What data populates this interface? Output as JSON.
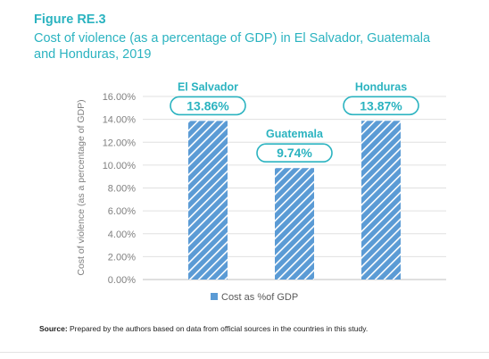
{
  "figure": {
    "label": "Figure RE.3",
    "title": "Cost of violence (as a percentage of GDP) in El Salvador, Guatemala and Honduras, 2019"
  },
  "source": {
    "prefix": "Source:",
    "text": " Prepared by the authors based on data from official sources in the countries in this study."
  },
  "colors": {
    "accent": "#2bb3c0",
    "bar": "#5b9bd5",
    "bar_stripe": "#ffffff",
    "axis_text": "#808080"
  },
  "chart_data": {
    "type": "bar",
    "title": "Cost of violence (as a percentage of GDP) in El Salvador, Guatemala and Honduras, 2019",
    "categories": [
      "El Salvador",
      "Guatemala",
      "Honduras"
    ],
    "series": [
      {
        "name": "Cost as %of GDP",
        "values": [
          13.86,
          9.74,
          13.87
        ]
      }
    ],
    "data_labels": [
      "13.86%",
      "9.74%",
      "13.87%"
    ],
    "ylabel": "Cost of violence (as a percentage of GDP)",
    "xlabel": "",
    "ylim": [
      0,
      16
    ],
    "yticks": [
      "0.00%",
      "2.00%",
      "4.00%",
      "6.00%",
      "8.00%",
      "10.00%",
      "12.00%",
      "14.00%",
      "16.00%"
    ],
    "grid": true,
    "legend": "bottom"
  }
}
